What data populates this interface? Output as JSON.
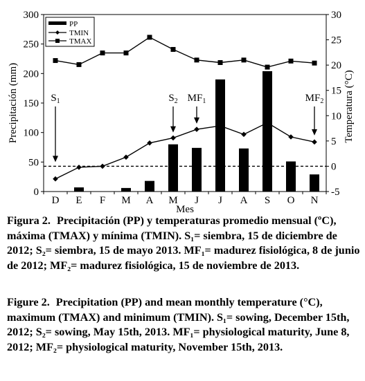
{
  "chart_data": {
    "type": "bar+line",
    "xlabel": "Mes",
    "ylabel_left": "Precipitación (mm)",
    "ylabel_right": "Temperatura (°C)",
    "categories": [
      "D",
      "E",
      "F",
      "M",
      "A",
      "M",
      "J",
      "J",
      "A",
      "S",
      "O",
      "N"
    ],
    "ylim_left": [
      0,
      300
    ],
    "yticks_left": [
      "0",
      "50",
      "100",
      "150",
      "200",
      "250",
      "300"
    ],
    "ylim_right": [
      -5,
      30
    ],
    "yticks_right": [
      "-5",
      "0",
      "5",
      "10",
      "15",
      "20",
      "25",
      "30"
    ],
    "legend": {
      "position": "top-left",
      "entries": [
        "PP",
        "TMIN",
        "TMAX"
      ]
    },
    "series": [
      {
        "name": "PP",
        "axis": "left",
        "style": "bar",
        "values": [
          0,
          7,
          0,
          6,
          18,
          80,
          74,
          190,
          73,
          204,
          51,
          29
        ]
      },
      {
        "name": "TMIN",
        "axis": "right",
        "style": "line-diamond",
        "values": [
          -2.5,
          -0.2,
          0.0,
          1.8,
          4.6,
          5.6,
          7.3,
          8.0,
          6.3,
          8.6,
          5.8,
          4.8
        ]
      },
      {
        "name": "TMAX",
        "axis": "right",
        "style": "line-square",
        "values": [
          20.9,
          20.1,
          22.4,
          22.4,
          25.5,
          23.1,
          21.0,
          20.5,
          21.0,
          19.6,
          20.8,
          20.4
        ]
      }
    ],
    "reference_line": {
      "axis": "right",
      "value": 0,
      "style": "dashed"
    },
    "annotations": [
      {
        "label_main": "S",
        "label_sub": "1",
        "category_index": 0,
        "arrow_to_value": 50
      },
      {
        "label_main": "S",
        "label_sub": "2",
        "category_index": 5,
        "arrow_to_value": 100
      },
      {
        "label_main": "MF",
        "label_sub": "1",
        "category_index": 6,
        "arrow_to_value": 115
      },
      {
        "label_main": "MF",
        "label_sub": "2",
        "category_index": 11,
        "arrow_to_value": 95
      }
    ]
  },
  "caption_es": {
    "label": "Figura 2.",
    "text": "Precipitación (PP) y temperaturas promedio mensual (ºC), máxima (TMAX) y mínima (TMIN). S₁= siembra, 15 de diciembre de 2012; S₂= siembra, 15 de mayo 2013. MF₁= madurez fisiológica, 8 de junio de 2012; MF₂= madurez fisiológica, 15 de noviembre de 2013."
  },
  "caption_en": {
    "label": "Figure 2.",
    "text": "Precipitation (PP) and mean monthly temperature (°C), maximum (TMAX) and minimum (TMIN). S₁= sowing, December 15th, 2012; S₂= sowing, May 15th, 2013. MF₁= physiological maturity, June 8, 2012; MF₂= physiological maturity, November 15th, 2013."
  }
}
